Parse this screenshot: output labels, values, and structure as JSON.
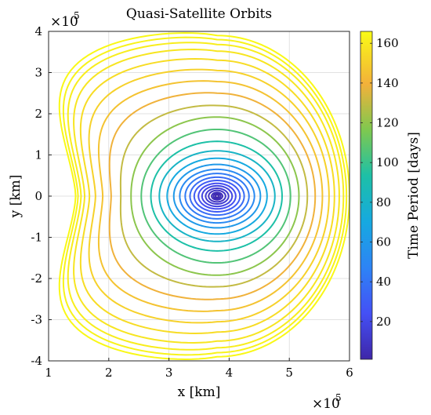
{
  "chart_data": {
    "type": "line",
    "title": "Quasi-Satellite Orbits",
    "xlabel": "x [km]",
    "ylabel": "y [km]",
    "x_multiplier": "×10",
    "x_multiplier_exp": "5",
    "y_multiplier": "×10",
    "y_multiplier_exp": "5",
    "xlim": [
      1,
      6
    ],
    "ylim": [
      -4,
      4
    ],
    "xticks": [
      "1",
      "2",
      "3",
      "4",
      "5",
      "6"
    ],
    "yticks": [
      "4",
      "3",
      "2",
      "1",
      "0",
      "-1",
      "-2",
      "-3",
      "-4"
    ],
    "grid": true,
    "colorbar": {
      "label": "Time Period [days]",
      "range": [
        1,
        166
      ],
      "ticks": [
        "20",
        "40",
        "60",
        "80",
        "100",
        "120",
        "140",
        "160"
      ],
      "colormap": "parula"
    },
    "center": [
      3.8,
      0
    ],
    "orbits": [
      {
        "period": 2,
        "x_min": 3.77,
        "x_max": 3.83,
        "y_max": 0.03
      },
      {
        "period": 4,
        "x_min": 3.74,
        "x_max": 3.86,
        "y_max": 0.06
      },
      {
        "period": 6,
        "x_min": 3.71,
        "x_max": 3.89,
        "y_max": 0.09
      },
      {
        "period": 9,
        "x_min": 3.66,
        "x_max": 3.94,
        "y_max": 0.14
      },
      {
        "period": 13,
        "x_min": 3.61,
        "x_max": 3.99,
        "y_max": 0.19
      },
      {
        "period": 18,
        "x_min": 3.55,
        "x_max": 4.05,
        "y_max": 0.25
      },
      {
        "period": 23,
        "x_min": 3.49,
        "x_max": 4.11,
        "y_max": 0.31
      },
      {
        "period": 29,
        "x_min": 3.42,
        "x_max": 4.18,
        "y_max": 0.38
      },
      {
        "period": 36,
        "x_min": 3.35,
        "x_max": 4.25,
        "y_max": 0.46
      },
      {
        "period": 43,
        "x_min": 3.27,
        "x_max": 4.33,
        "y_max": 0.55
      },
      {
        "period": 51,
        "x_min": 3.18,
        "x_max": 4.42,
        "y_max": 0.65
      },
      {
        "period": 60,
        "x_min": 3.08,
        "x_max": 4.52,
        "y_max": 0.77
      },
      {
        "period": 70,
        "x_min": 2.97,
        "x_max": 4.63,
        "y_max": 0.92
      },
      {
        "period": 81,
        "x_min": 2.84,
        "x_max": 4.76,
        "y_max": 1.1
      },
      {
        "period": 93,
        "x_min": 2.7,
        "x_max": 4.88,
        "y_max": 1.33
      },
      {
        "period": 106,
        "x_min": 2.54,
        "x_max": 5.02,
        "y_max": 1.62
      },
      {
        "period": 119,
        "x_min": 2.37,
        "x_max": 5.16,
        "y_max": 1.92
      },
      {
        "period": 130,
        "x_min": 2.2,
        "x_max": 5.3,
        "y_max": 2.2
      },
      {
        "period": 139,
        "x_min": 2.04,
        "x_max": 5.43,
        "y_max": 2.5
      },
      {
        "period": 146,
        "x_min": 1.9,
        "x_max": 5.55,
        "y_max": 2.78
      },
      {
        "period": 151,
        "x_min": 1.78,
        "x_max": 5.66,
        "y_max": 3.05
      },
      {
        "period": 155,
        "x_min": 1.68,
        "x_max": 5.75,
        "y_max": 3.3
      },
      {
        "period": 158,
        "x_min": 1.6,
        "x_max": 5.83,
        "y_max": 3.52
      },
      {
        "period": 161,
        "x_min": 1.54,
        "x_max": 5.9,
        "y_max": 3.68
      },
      {
        "period": 163,
        "x_min": 1.49,
        "x_max": 5.95,
        "y_max": 3.8
      },
      {
        "period": 165,
        "x_min": 1.45,
        "x_max": 6.0,
        "y_max": 3.9
      }
    ]
  }
}
